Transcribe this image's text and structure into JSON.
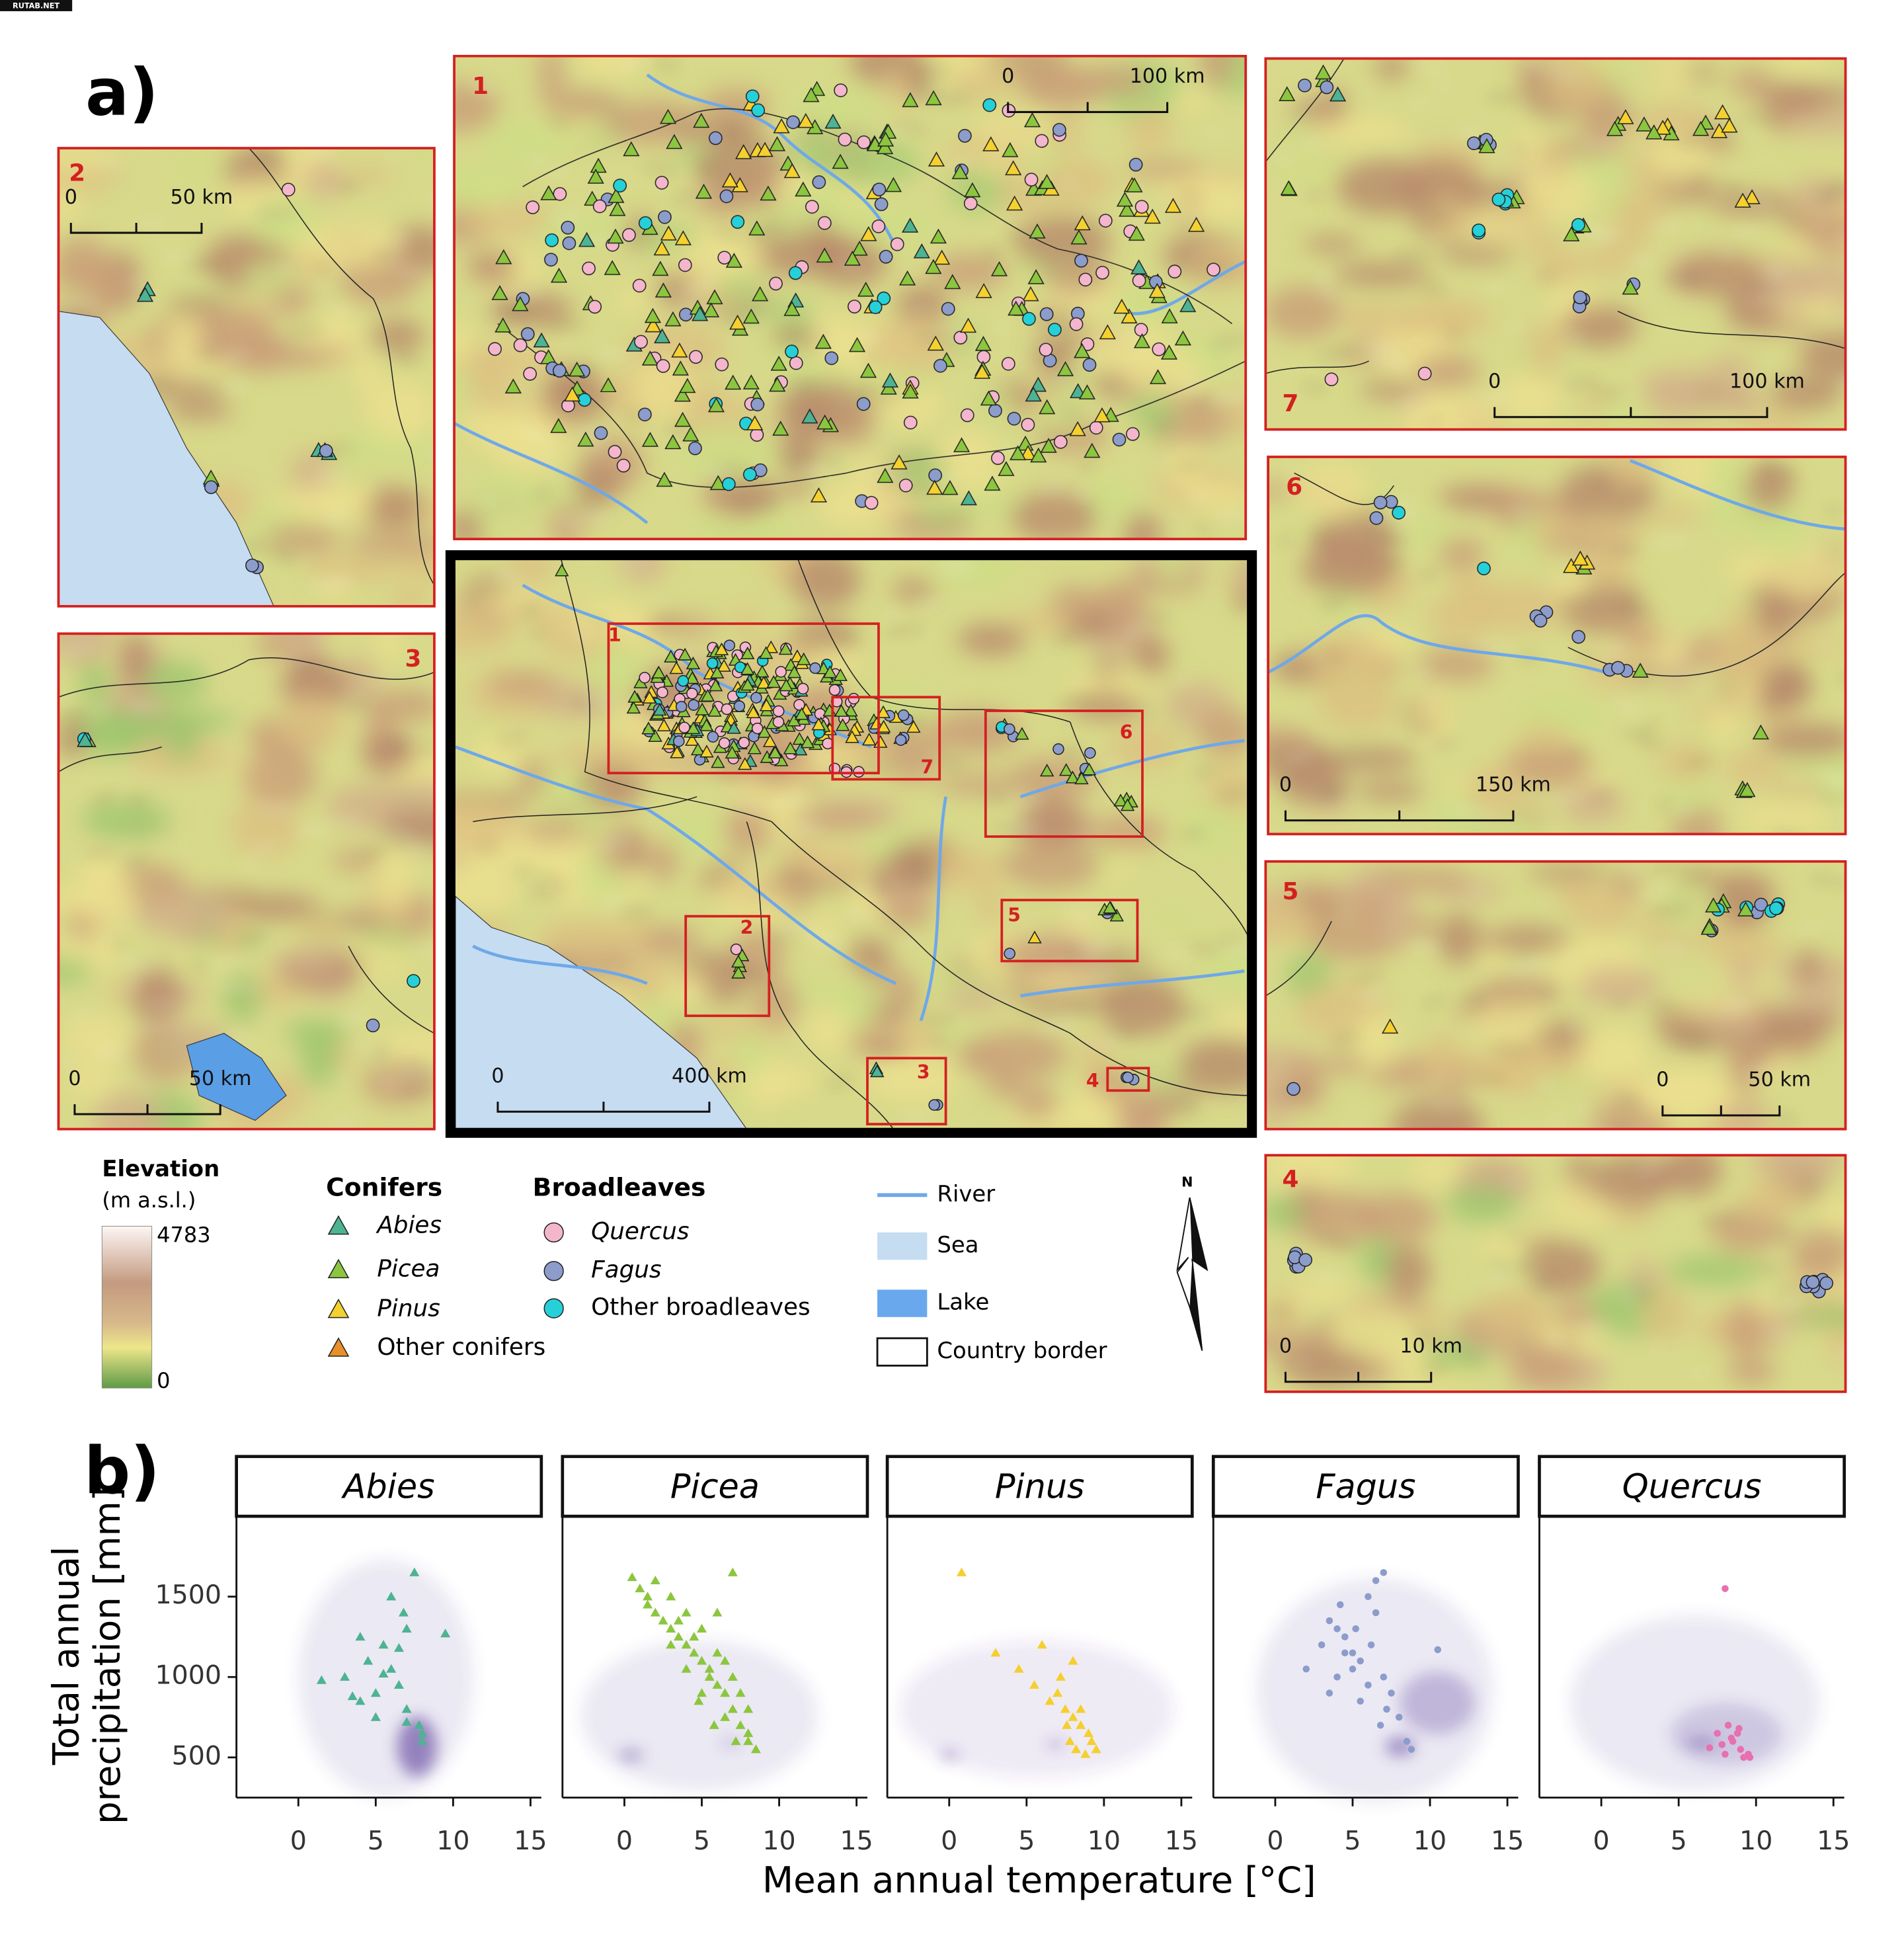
{
  "watermark": "RUTAB.NET",
  "map": {
    "label": "a)",
    "panels": [
      {
        "number": "1",
        "scale_bar": [
          "0",
          "100 km"
        ]
      },
      {
        "number": "2",
        "scale_bar": [
          "0",
          "50 km"
        ]
      },
      {
        "number": "3",
        "scale_bar": [
          "0",
          "50 km"
        ]
      },
      {
        "number": "4",
        "scale_bar": [
          "0",
          "10 km"
        ]
      },
      {
        "number": "5",
        "scale_bar": [
          "0",
          "50 km"
        ]
      },
      {
        "number": "6",
        "scale_bar": [
          "0",
          "150 km"
        ]
      },
      {
        "number": "7",
        "scale_bar": [
          "0",
          "100 km"
        ]
      }
    ],
    "overview_scale_bar": [
      "0",
      "400 km"
    ],
    "legend": {
      "elevation": {
        "title": "Elevation",
        "unit": "(m a.s.l.)",
        "max": 4783,
        "min": 0
      },
      "conifers": {
        "title": "Conifers",
        "items": [
          "Abies",
          "Picea",
          "Pinus",
          "Other conifers"
        ]
      },
      "broadleaves": {
        "title": "Broadleaves",
        "items": [
          "Quercus",
          "Fagus",
          "Other broadleaves"
        ]
      },
      "features": [
        "River",
        "Sea",
        "Lake",
        "Country border"
      ],
      "north": "N"
    }
  },
  "chart_data": {
    "type": "scatter",
    "panel_label": "b)",
    "x_label": "Mean annual temperature [°C]",
    "y_label": [
      "Total annual",
      "precipitation [mm]"
    ],
    "xlim": [
      -4,
      15.7
    ],
    "ylim": [
      250,
      2000
    ],
    "xticks": [
      0,
      5,
      10,
      15
    ],
    "yticks": [
      500,
      1000,
      1500
    ],
    "series": [
      {
        "name": "Abies",
        "color": "#4db393",
        "marker": "triangle",
        "x": [
          1.5,
          3,
          4,
          4.5,
          5,
          5.5,
          6,
          6.5,
          7,
          7.5,
          8,
          6,
          5,
          4,
          7,
          8,
          9.5,
          6.5,
          7,
          3.5,
          5.5,
          6.8,
          7.8
        ],
        "y": [
          980,
          1000,
          1250,
          1100,
          900,
          1200,
          1050,
          950,
          800,
          1650,
          600,
          1500,
          750,
          850,
          1300,
          650,
          1270,
          1180,
          720,
          880,
          1020,
          1400,
          700
        ]
      },
      {
        "name": "Picea",
        "color": "#8cc63f",
        "marker": "triangle",
        "x": [
          0.5,
          1,
          1.5,
          2,
          2.5,
          3,
          3.5,
          4,
          4.5,
          5,
          5.5,
          6,
          6.5,
          7,
          7.5,
          8,
          8.5,
          3,
          4,
          5,
          6,
          7,
          8,
          2,
          3.5,
          4.5,
          5.5,
          6.5,
          7.5,
          1.5,
          6,
          7,
          5,
          8,
          4,
          3,
          6.5,
          7.2,
          5.8,
          4.8
        ],
        "y": [
          1620,
          1550,
          1450,
          1400,
          1350,
          1300,
          1250,
          1200,
          1150,
          1100,
          1050,
          950,
          900,
          800,
          700,
          600,
          550,
          1500,
          1400,
          1300,
          1150,
          1000,
          800,
          1600,
          1350,
          1250,
          1000,
          1100,
          900,
          1500,
          1400,
          1650,
          900,
          650,
          1050,
          1200,
          750,
          600,
          700,
          850
        ]
      },
      {
        "name": "Pinus",
        "color": "#f5cf2e",
        "marker": "triangle",
        "x": [
          0.8,
          3,
          4.5,
          6,
          7,
          7.5,
          8,
          8.5,
          9,
          7.8,
          8.2,
          8.8,
          9.2,
          7.2,
          6.5,
          5.5,
          8,
          8.5,
          9.5,
          7.6
        ],
        "y": [
          1650,
          1150,
          1050,
          1200,
          900,
          800,
          750,
          700,
          650,
          600,
          550,
          520,
          600,
          1000,
          850,
          950,
          1100,
          800,
          550,
          700
        ]
      },
      {
        "name": "Fagus",
        "color": "#8c9ccb",
        "marker": "circle",
        "x": [
          2,
          3,
          3.5,
          4,
          4.5,
          5,
          5.5,
          6,
          6.5,
          7,
          7.5,
          8,
          8.5,
          4,
          5,
          6,
          7,
          4.5,
          5.5,
          6.5,
          3.5,
          6.8,
          7.2,
          10.5,
          8.8,
          5.2,
          6.2,
          4.2
        ],
        "y": [
          1050,
          1200,
          1350,
          1300,
          1250,
          1150,
          1100,
          1500,
          1400,
          1000,
          900,
          750,
          600,
          1000,
          1050,
          950,
          1650,
          1150,
          850,
          1600,
          900,
          700,
          800,
          1170,
          550,
          1300,
          1200,
          1450
        ]
      },
      {
        "name": "Quercus",
        "color": "#e86fb0",
        "marker": "circle",
        "x": [
          8,
          7.5,
          8.2,
          8.5,
          9,
          9.5,
          7.8,
          8.8,
          9.2,
          8,
          7,
          9.6,
          8.4,
          8.9
        ],
        "y": [
          1550,
          650,
          700,
          600,
          550,
          520,
          580,
          650,
          500,
          520,
          560,
          500,
          620,
          680
        ]
      }
    ]
  }
}
